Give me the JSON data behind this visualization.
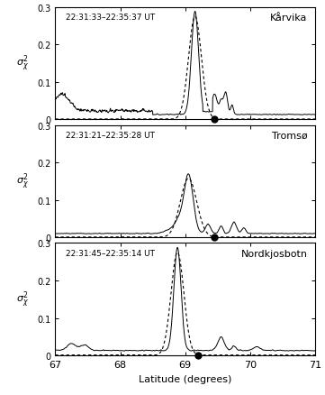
{
  "panels": [
    {
      "title": "Kårvika",
      "time_label": "22:31:33–22:35:37 UT",
      "peak_lat": 69.15,
      "peak_val": 0.275,
      "peak_sigma": 0.055,
      "dot_lat": 69.45,
      "secondary_bumps": [
        {
          "lat": 69.45,
          "val": 0.055,
          "sigma": 0.04
        },
        {
          "lat": 69.55,
          "val": 0.035,
          "sigma": 0.025
        },
        {
          "lat": 69.62,
          "val": 0.06,
          "sigma": 0.03
        },
        {
          "lat": 69.72,
          "val": 0.025,
          "sigma": 0.02
        }
      ],
      "left_shoulder": {
        "lat": 67.1,
        "val": 0.05,
        "sigma": 0.15
      },
      "baseline": 0.01,
      "noise_amp": 0.008,
      "ylim": [
        0,
        0.3
      ],
      "yticks": [
        0,
        0.1,
        0.2,
        0.3
      ]
    },
    {
      "title": "Tromsø",
      "time_label": "22:31:21–22:35:28 UT",
      "peak_lat": 69.05,
      "peak_val": 0.158,
      "peak_sigma": 0.07,
      "dot_lat": 69.45,
      "secondary_bumps": [
        {
          "lat": 69.35,
          "val": 0.025,
          "sigma": 0.04
        },
        {
          "lat": 69.55,
          "val": 0.02,
          "sigma": 0.03
        },
        {
          "lat": 69.75,
          "val": 0.03,
          "sigma": 0.04
        },
        {
          "lat": 69.9,
          "val": 0.015,
          "sigma": 0.03
        }
      ],
      "left_shoulder": null,
      "baseline": 0.008,
      "noise_amp": 0.006,
      "ylim": [
        0,
        0.3
      ],
      "yticks": [
        0,
        0.1,
        0.2,
        0.3
      ]
    },
    {
      "title": "Nordkjosbotn",
      "time_label": "22:31:45–22:35:14 UT",
      "peak_lat": 68.88,
      "peak_val": 0.275,
      "peak_sigma": 0.055,
      "dot_lat": 69.2,
      "secondary_bumps": [
        {
          "lat": 69.55,
          "val": 0.018,
          "sigma": 0.04
        },
        {
          "lat": 69.75,
          "val": 0.012,
          "sigma": 0.03
        },
        {
          "lat": 70.1,
          "val": 0.01,
          "sigma": 0.05
        }
      ],
      "left_shoulder": null,
      "baseline": 0.01,
      "noise_amp": 0.008,
      "ylim": [
        0,
        0.3
      ],
      "yticks": [
        0,
        0.1,
        0.2,
        0.3
      ]
    }
  ],
  "xlim": [
    67,
    71
  ],
  "xticks": [
    67,
    68,
    69,
    70,
    71
  ],
  "xlabel": "Latitude (degrees)",
  "bg_color": "white"
}
